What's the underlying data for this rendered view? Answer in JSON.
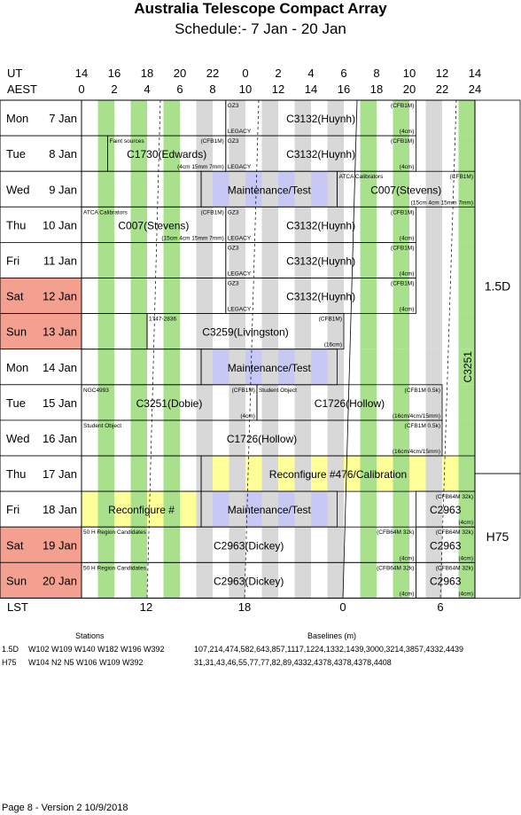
{
  "title": "Australia Telescope Compact Array",
  "subtitle": "Schedule:- 7  Jan - 20 Jan",
  "header": {
    "ut_label": "UT",
    "aest_label": "AEST",
    "lst_label": "LST",
    "ut_ticks": [
      "14",
      "16",
      "18",
      "20",
      "22",
      "0",
      "2",
      "4",
      "6",
      "8",
      "10",
      "12",
      "14"
    ],
    "aest_ticks": [
      "0",
      "2",
      "4",
      "6",
      "8",
      "10",
      "12",
      "14",
      "16",
      "18",
      "20",
      "22",
      "24"
    ],
    "lst_ticks": [
      "12",
      "18",
      "0",
      "6"
    ]
  },
  "days": [
    {
      "day": "Mon",
      "date": "7 Jan",
      "weekend": false
    },
    {
      "day": "Tue",
      "date": "8 Jan",
      "weekend": false
    },
    {
      "day": "Wed",
      "date": "9 Jan",
      "weekend": false
    },
    {
      "day": "Thu",
      "date": "10 Jan",
      "weekend": false
    },
    {
      "day": "Fri",
      "date": "11 Jan",
      "weekend": false
    },
    {
      "day": "Sat",
      "date": "12 Jan",
      "weekend": true
    },
    {
      "day": "Sun",
      "date": "13 Jan",
      "weekend": true
    },
    {
      "day": "Mon",
      "date": "14 Jan",
      "weekend": false
    },
    {
      "day": "Tue",
      "date": "15 Jan",
      "weekend": false
    },
    {
      "day": "Wed",
      "date": "16 Jan",
      "weekend": false
    },
    {
      "day": "Thu",
      "date": "17 Jan",
      "weekend": false
    },
    {
      "day": "Fri",
      "date": "18 Jan",
      "weekend": false
    },
    {
      "day": "Sat",
      "date": "19 Jan",
      "weekend": true
    },
    {
      "day": "Sun",
      "date": "20 Jan",
      "weekend": true
    }
  ],
  "configs": [
    {
      "name": "1.5D"
    },
    {
      "name": "H75"
    }
  ],
  "colors": {
    "green": "#a8e08c",
    "grey": "#d8d8d8",
    "blue": "#c8c8f4",
    "yellow": "#ffff99",
    "weekend": "#f4a090",
    "border": "#000000"
  },
  "blocks": [
    {
      "row": 0,
      "start": 14,
      "end": 22.8,
      "label": "",
      "note_tl": "",
      "note_tr": "",
      "note_br": ""
    },
    {
      "row": 0,
      "start": 22.8,
      "end": 34.4,
      "label": "C3132(Huynh)",
      "note_tl": "GZ3",
      "note_bl": "LEGACY",
      "note_tr": "(CFB1M)",
      "note_br": "(4cm)"
    },
    {
      "row": 1,
      "start": 14,
      "end": 15.6,
      "label": "",
      "note_tl": "",
      "note_tr": "",
      "note_br": ""
    },
    {
      "row": 1,
      "start": 15.6,
      "end": 22.8,
      "label": "C1730(Edwards)",
      "note_tl": "Faint sources",
      "note_tr": "(CFB1M)",
      "note_br": "(4cm 15mm 7mm)"
    },
    {
      "row": 1,
      "start": 22.8,
      "end": 34.4,
      "label": "C3132(Huynh)",
      "note_tl": "GZ3",
      "note_bl": "LEGACY",
      "note_tr": "(CFB1M)",
      "note_br": "(4cm)"
    },
    {
      "row": 2,
      "start": 14,
      "end": 21.3,
      "label": "",
      "note_tl": "",
      "note_tr": "",
      "note_br": ""
    },
    {
      "row": 2,
      "start": 21.3,
      "end": 29.6,
      "label": "Maintenance/Test",
      "note_tl": "",
      "note_tr": "",
      "note_br": ""
    },
    {
      "row": 2,
      "start": 29.6,
      "end": 38,
      "label": "C007(Stevens)",
      "note_tl": "ATCA Calibrators",
      "note_tr": "(CFB1M)",
      "note_br": "(15cm 4cm 15mm 7mm)"
    },
    {
      "row": 3,
      "start": 14,
      "end": 22.8,
      "label": "C007(Stevens)",
      "note_tl": "ATCA Calibrators",
      "note_tr": "(CFB1M)",
      "note_br": "(15cm 4cm 15mm 7mm)"
    },
    {
      "row": 3,
      "start": 22.8,
      "end": 34.4,
      "label": "C3132(Huynh)",
      "note_tl": "GZ3",
      "note_bl": "LEGACY",
      "note_tr": "(CFB1M)",
      "note_br": "(4cm)"
    },
    {
      "row": 4,
      "start": 14,
      "end": 22.8,
      "label": "",
      "note_tl": "",
      "note_tr": "",
      "note_br": ""
    },
    {
      "row": 4,
      "start": 22.8,
      "end": 34.4,
      "label": "C3132(Huynh)",
      "note_tl": "GZ3",
      "note_bl": "LEGACY",
      "note_tr": "(CFB1M)",
      "note_br": "(4cm)"
    },
    {
      "row": 5,
      "start": 14,
      "end": 22.8,
      "label": "",
      "note_tl": "",
      "note_tr": "",
      "note_br": ""
    },
    {
      "row": 5,
      "start": 22.8,
      "end": 34.4,
      "label": "C3132(Huynh)",
      "note_tl": "GZ3",
      "note_bl": "LEGACY",
      "note_tr": "(CFB1M)",
      "note_br": "(4cm)"
    },
    {
      "row": 6,
      "start": 14,
      "end": 18,
      "label": "",
      "note_tl": "",
      "note_tr": "",
      "note_br": ""
    },
    {
      "row": 6,
      "start": 18,
      "end": 30,
      "label": "C3259(Livingston)",
      "note_tl": "1747-2836",
      "note_tr": "(CFB1M)",
      "note_br": "(16cm)"
    },
    {
      "row": 7,
      "start": 14,
      "end": 21.3,
      "label": "",
      "note_tl": "",
      "note_tr": "",
      "note_br": ""
    },
    {
      "row": 7,
      "start": 21.3,
      "end": 29.6,
      "label": "Maintenance/Test",
      "note_tl": "",
      "note_tr": "",
      "note_br": ""
    },
    {
      "row": 8,
      "start": 14,
      "end": 24.7,
      "label": "C3251(Dobie)",
      "note_tl": "NGC4993",
      "note_tr": "(CFB1M)",
      "note_br": "(4cm)"
    },
    {
      "row": 8,
      "start": 24.7,
      "end": 36,
      "label": "C1726(Hollow)",
      "note_tl": "Student Object",
      "note_tr": "(CFB1M 0.5k)",
      "note_br": "(16cm/4cm/15mm)"
    },
    {
      "row": 9,
      "start": 14,
      "end": 36,
      "label": "C1726(Hollow)",
      "note_tl": "Student Object",
      "note_tr": "(CFB1M 0.5k)",
      "note_br": "(16cm/4cm/15mm)"
    },
    {
      "row": 10,
      "start": 14,
      "end": 21.3,
      "label": "",
      "note_tl": "",
      "note_tr": "",
      "note_br": ""
    },
    {
      "row": 10,
      "start": 21.3,
      "end": 38,
      "label": "Reconfigure #476/Calibration",
      "note_tl": "",
      "note_tr": "",
      "note_br": ""
    },
    {
      "row": 11,
      "start": 14,
      "end": 21.3,
      "label": "Reconfigure #",
      "note_tl": "",
      "note_tr": "",
      "note_br": ""
    },
    {
      "row": 11,
      "start": 21.3,
      "end": 29.6,
      "label": "Maintenance/Test",
      "note_tl": "",
      "note_tr": "",
      "note_br": ""
    },
    {
      "row": 11,
      "start": 34.4,
      "end": 38,
      "label": "C2963",
      "note_tl": "",
      "note_tr": "(CFB64M 32k)",
      "note_br": "(4cm)"
    },
    {
      "row": 12,
      "start": 14,
      "end": 34.4,
      "label": "C2963(Dickey)",
      "note_tl": "50 H   Region Candidates",
      "note_tr": "(CFB64M 32k)",
      "note_br": "(4cm)"
    },
    {
      "row": 12,
      "start": 34.4,
      "end": 38,
      "label": "C2963",
      "note_tl": "",
      "note_tr": "(CFB64M 32k)",
      "note_br": "(4cm)"
    },
    {
      "row": 13,
      "start": 14,
      "end": 34.4,
      "label": "C2963(Dickey)",
      "note_tl": "50 H   Region Candidates",
      "note_tr": "(CFB64M 32k)",
      "note_br": "(4cm)"
    },
    {
      "row": 13,
      "start": 34.4,
      "end": 38,
      "label": "C2963",
      "note_tl": "",
      "note_tr": "(CFB64M 32k)",
      "note_br": "(4cm)"
    }
  ],
  "side_labels": [
    {
      "text": "C3251",
      "row": 7
    }
  ],
  "footer": {
    "stations_header": "Stations",
    "baselines_header": "Baselines (m)",
    "rows": [
      {
        "config": "1.5D",
        "stations": "W102 W109 W140 W182 W196 W392",
        "baselines": "107,214,474,582,643,857,1117,1224,1332,1439,3000,3214,3857,4332,4439"
      },
      {
        "config": "H75",
        "stations": "W104 N2 N5 W106 W109 W392",
        "baselines": "31,31,43,46,55,77,77,82,89,4332,4378,4378,4378,4408"
      }
    ],
    "page_note": "Page 8 - Version 2  10/9/2018"
  }
}
